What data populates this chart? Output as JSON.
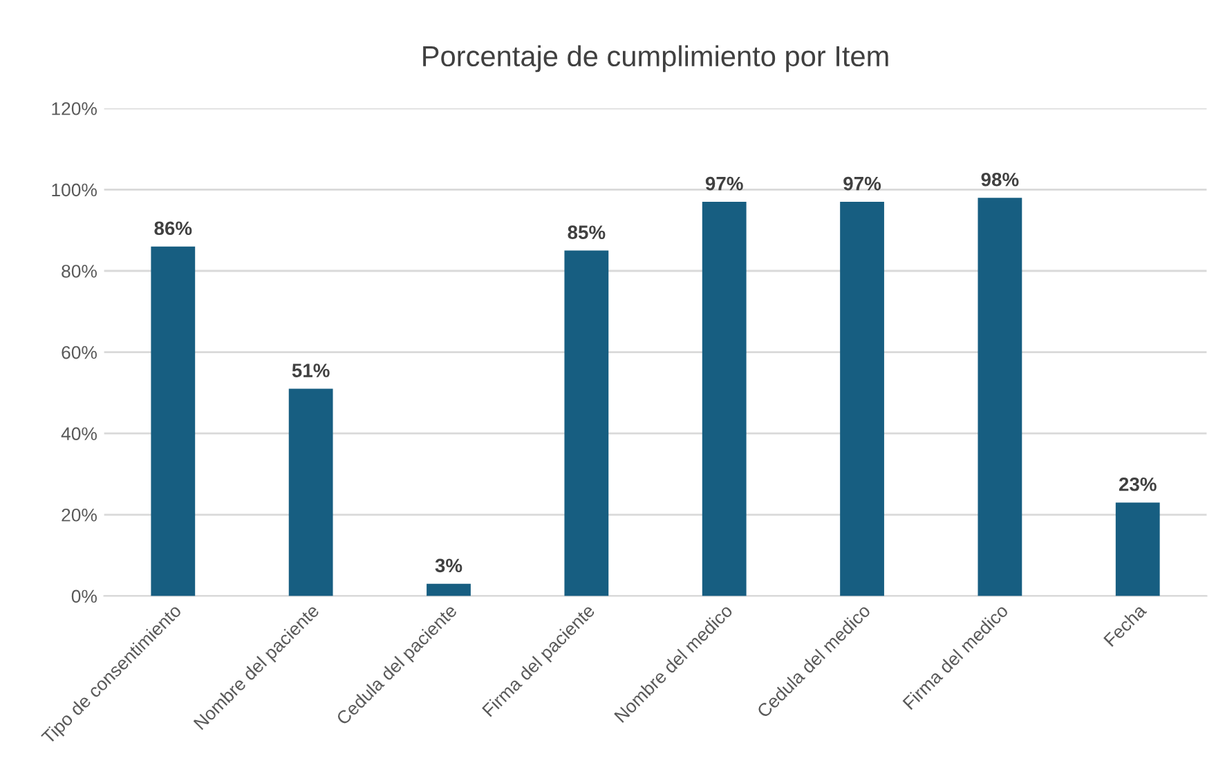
{
  "chart_data": {
    "type": "bar",
    "title": "Porcentaje de cumplimiento por Item",
    "categories": [
      "Tipo de consentimiento",
      "Nombre del paciente",
      "Cedula del paciente",
      "Firma del paciente",
      "Nombre del medico",
      "Cedula del medico",
      "Firma del medico",
      "Fecha"
    ],
    "values": [
      86,
      51,
      3,
      85,
      97,
      97,
      98,
      23
    ],
    "value_labels": [
      "86%",
      "51%",
      "3%",
      "85%",
      "97%",
      "97%",
      "98%",
      "23%"
    ],
    "color": "#175e81",
    "ylim": [
      0,
      120
    ],
    "yticks": [
      {
        "value": 0,
        "label": "0%"
      },
      {
        "value": 20,
        "label": "20%"
      },
      {
        "value": 40,
        "label": "40%"
      },
      {
        "value": 60,
        "label": "60%"
      },
      {
        "value": 80,
        "label": "80%"
      },
      {
        "value": 100,
        "label": "100%"
      },
      {
        "value": 120,
        "label": "120%"
      }
    ],
    "grid": "y",
    "legend": false
  }
}
